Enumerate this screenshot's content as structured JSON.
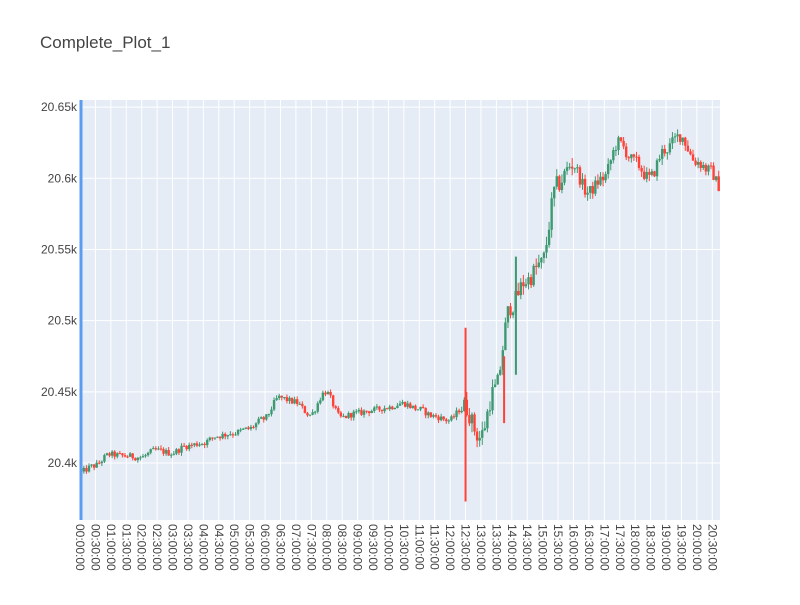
{
  "chart_data": {
    "type": "candlestick",
    "title": "Complete_Plot_1",
    "xlabel": "",
    "ylabel": "",
    "ylim": [
      20360,
      20655
    ],
    "y_ticks": [
      20400,
      20450,
      20500,
      20550,
      20600,
      20650
    ],
    "y_tick_labels": [
      "20.4k",
      "20.45k",
      "20.5k",
      "20.55k",
      "20.6k",
      "20.65k"
    ],
    "x_tick_labels": [
      "00:00:00",
      "00:30:00",
      "01:00:00",
      "01:30:00",
      "02:00:00",
      "02:30:00",
      "03:00:00",
      "03:30:00",
      "04:00:00",
      "04:30:00",
      "05:00:00",
      "05:30:00",
      "06:00:00",
      "06:30:00",
      "07:00:00",
      "07:30:00",
      "08:00:00",
      "08:30:00",
      "09:00:00",
      "09:30:00",
      "10:00:00",
      "10:30:00",
      "11:00:00",
      "11:30:00",
      "12:00:00",
      "12:30:00",
      "13:00:00",
      "13:30:00",
      "14:00:00",
      "14:30:00",
      "15:00:00",
      "15:30:00",
      "16:00:00",
      "16:30:00",
      "17:00:00",
      "17:30:00",
      "18:00:00",
      "18:30:00",
      "19:00:00",
      "19:30:00",
      "20:00:00",
      "20:30:00"
    ],
    "x_range_hours": [
      0,
      20.75
    ],
    "grid": true,
    "legend": "none",
    "colors": {
      "increasing": "#3D9970",
      "decreasing": "#FF4136",
      "plot_bg": "#E5ECF6",
      "grid": "#ffffff",
      "range_marker": "#5B9BF0"
    },
    "series": [
      {
        "t": "00:00:00",
        "close": 20393
      },
      {
        "t": "00:30:00",
        "close": 20398
      },
      {
        "t": "01:00:00",
        "close": 20406
      },
      {
        "t": "01:30:00",
        "close": 20405
      },
      {
        "t": "02:00:00",
        "close": 20404
      },
      {
        "t": "02:30:00",
        "close": 20409
      },
      {
        "t": "03:00:00",
        "close": 20407
      },
      {
        "t": "03:30:00",
        "close": 20412
      },
      {
        "t": "04:00:00",
        "close": 20414
      },
      {
        "t": "04:30:00",
        "close": 20419
      },
      {
        "t": "05:00:00",
        "close": 20421
      },
      {
        "t": "05:30:00",
        "close": 20424
      },
      {
        "t": "06:00:00",
        "close": 20431
      },
      {
        "t": "06:30:00",
        "close": 20446
      },
      {
        "t": "07:00:00",
        "close": 20443
      },
      {
        "t": "07:30:00",
        "close": 20434
      },
      {
        "t": "08:00:00",
        "close": 20450
      },
      {
        "t": "08:30:00",
        "close": 20432
      },
      {
        "t": "09:00:00",
        "close": 20435
      },
      {
        "t": "09:30:00",
        "close": 20437
      },
      {
        "t": "10:00:00",
        "close": 20439
      },
      {
        "t": "10:30:00",
        "close": 20442
      },
      {
        "t": "11:00:00",
        "close": 20438
      },
      {
        "t": "11:30:00",
        "close": 20433
      },
      {
        "t": "12:00:00",
        "close": 20430
      },
      {
        "t": "12:30:00",
        "close": 20440
      },
      {
        "t": "13:00:00",
        "close": 20418
      },
      {
        "t": "13:30:00",
        "close": 20452
      },
      {
        "t": "14:00:00",
        "close": 20510
      },
      {
        "t": "14:30:00",
        "close": 20528
      },
      {
        "t": "15:00:00",
        "close": 20540
      },
      {
        "t": "15:30:00",
        "close": 20595
      },
      {
        "t": "16:00:00",
        "close": 20610
      },
      {
        "t": "16:30:00",
        "close": 20590
      },
      {
        "t": "17:00:00",
        "close": 20600
      },
      {
        "t": "17:30:00",
        "close": 20625
      },
      {
        "t": "18:00:00",
        "close": 20612
      },
      {
        "t": "18:30:00",
        "close": 20600
      },
      {
        "t": "19:00:00",
        "close": 20620
      },
      {
        "t": "19:30:00",
        "close": 20630
      },
      {
        "t": "20:00:00",
        "close": 20612
      },
      {
        "t": "20:30:00",
        "close": 20605
      },
      {
        "t": "20:45:00",
        "close": 20595
      }
    ],
    "spikes": [
      {
        "t": "12:30:00",
        "high": 20495,
        "low": 20373,
        "direction": "down"
      },
      {
        "t": "13:45:00",
        "high": 20475,
        "low": 20428,
        "direction": "down"
      },
      {
        "t": "14:08:00",
        "high": 20545,
        "low": 20462,
        "direction": "up"
      }
    ]
  }
}
